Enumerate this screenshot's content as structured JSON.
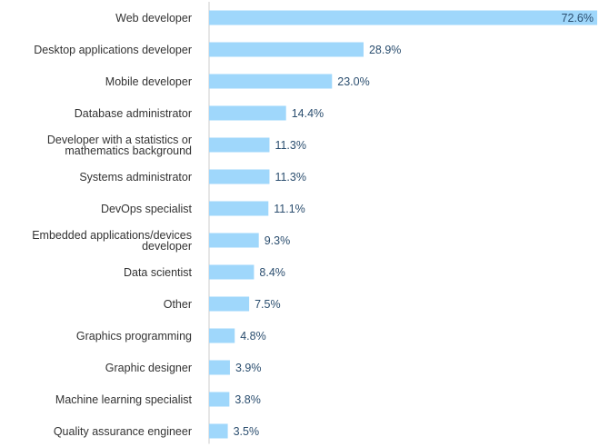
{
  "colors": {
    "bar": "#9fd7fb",
    "axis": "#cccccc",
    "category_text": "#333333",
    "value_text": "#2b4e6f",
    "background": "#ffffff"
  },
  "chart_data": {
    "type": "bar",
    "orientation": "horizontal",
    "title": "",
    "xlabel": "",
    "ylabel": "",
    "xlim": [
      0,
      72.6
    ],
    "grid": false,
    "legend": "none",
    "value_suffix": "%",
    "categories": [
      [
        "Web developer"
      ],
      [
        "Desktop applications developer"
      ],
      [
        "Mobile developer"
      ],
      [
        "Database administrator"
      ],
      [
        "Developer with a statistics or",
        "mathematics background"
      ],
      [
        "Systems administrator"
      ],
      [
        "DevOps specialist"
      ],
      [
        "Embedded applications/devices",
        "developer"
      ],
      [
        "Data scientist"
      ],
      [
        "Other"
      ],
      [
        "Graphics programming"
      ],
      [
        "Graphic designer"
      ],
      [
        "Machine learning specialist"
      ],
      [
        "Quality assurance engineer"
      ]
    ],
    "values": [
      72.6,
      28.9,
      23.0,
      14.4,
      11.3,
      11.3,
      11.1,
      9.3,
      8.4,
      7.5,
      4.8,
      3.9,
      3.8,
      3.5
    ],
    "value_labels": [
      "72.6%",
      "28.9%",
      "23.0%",
      "14.4%",
      "11.3%",
      "11.3%",
      "11.1%",
      "9.3%",
      "8.4%",
      "7.5%",
      "4.8%",
      "3.9%",
      "3.8%",
      "3.5%"
    ]
  }
}
